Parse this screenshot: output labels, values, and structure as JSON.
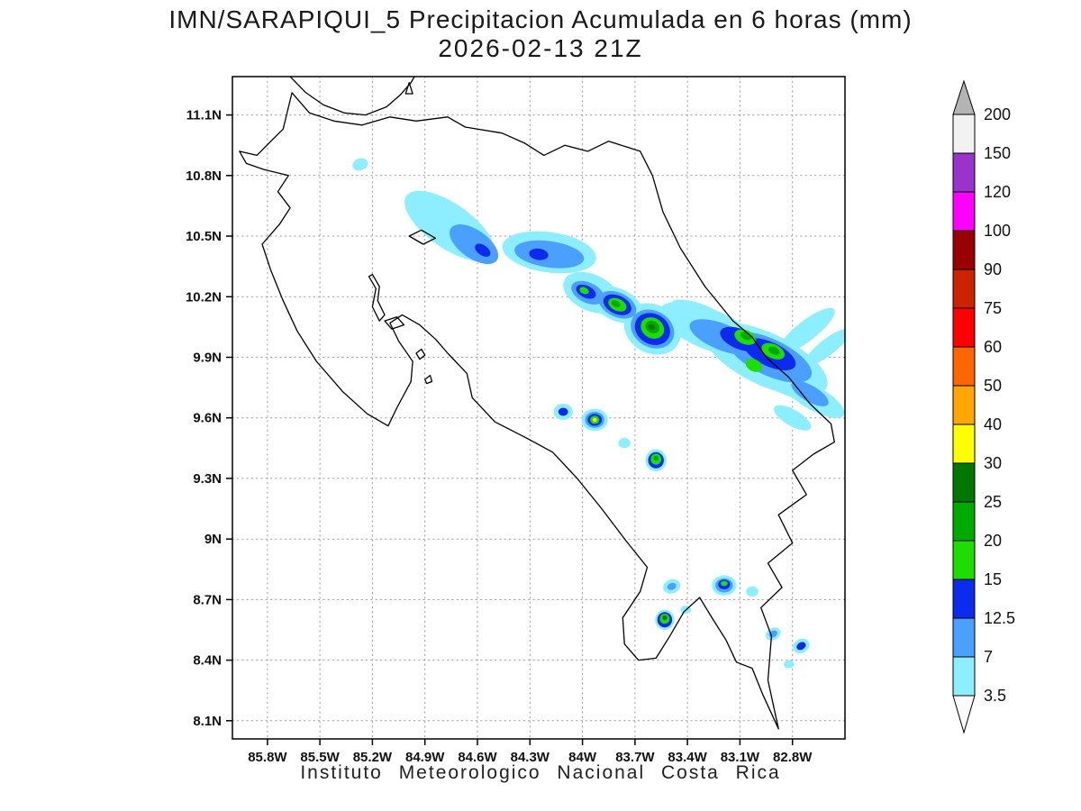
{
  "chart_data": {
    "type": "heatmap",
    "title": "IMN/SARAPIQUI_5 Precipitacion Acumulada en 6 horas (mm)",
    "subtitle": "2026-02-13 21Z",
    "footer": "Instituto Meteorologico Nacional Costa Rica",
    "units": "mm",
    "x_axis": {
      "tick_labels": [
        "85.8W",
        "85.5W",
        "85.2W",
        "84.9W",
        "84.6W",
        "84.3W",
        "84W",
        "83.7W",
        "83.4W",
        "83.1W",
        "82.8W"
      ],
      "tick_values": [
        85.8,
        85.5,
        85.2,
        84.9,
        84.6,
        84.3,
        84.0,
        83.7,
        83.4,
        83.1,
        82.8
      ],
      "lon_w_range": [
        86.0,
        82.5
      ]
    },
    "y_axis": {
      "tick_labels": [
        "11.1N",
        "10.8N",
        "10.5N",
        "10.2N",
        "9.9N",
        "9.6N",
        "9.3N",
        "9N",
        "8.7N",
        "8.4N",
        "8.1N"
      ],
      "tick_values": [
        11.1,
        10.8,
        10.5,
        10.2,
        9.9,
        9.6,
        9.3,
        9.0,
        8.7,
        8.4,
        8.1
      ],
      "lat_n_range": [
        11.29,
        8.01
      ]
    },
    "colorbar": {
      "boundary_labels": [
        "200",
        "150",
        "120",
        "100",
        "90",
        "75",
        "60",
        "50",
        "40",
        "30",
        "25",
        "20",
        "15",
        "12.5",
        "7",
        "3.5"
      ],
      "box_colors_top_to_bottom": [
        "#f2f2f2",
        "#9933cc",
        "#ff00ff",
        "#990000",
        "#cc2200",
        "#ff0000",
        "#ff6600",
        "#ffa600",
        "#ffff00",
        "#007700",
        "#00aa00",
        "#20dd00",
        "#0c2bee",
        "#4a9fff",
        "#8deeff"
      ],
      "arrow_top_color": "#b4b4b4",
      "arrow_bottom_color": "#fbfbfb"
    },
    "palette_mm": {
      "3.5": "#8deeff",
      "7": "#4a9fff",
      "12.5": "#0c2bee",
      "15": "#20dd00",
      "20": "#00aa00",
      "25": "#007700",
      "30": "#ffff00"
    },
    "geo": {
      "outline": [
        [
          85.96,
          10.92
        ],
        [
          85.86,
          10.9
        ],
        [
          85.78,
          10.97
        ],
        [
          85.71,
          11.03
        ],
        [
          85.66,
          11.21
        ],
        [
          85.56,
          11.11
        ],
        [
          85.42,
          11.07
        ],
        [
          85.26,
          11.05
        ],
        [
          85.1,
          11.09
        ],
        [
          84.95,
          11.07
        ],
        [
          84.77,
          11.09
        ],
        [
          84.67,
          11.04
        ],
        [
          84.46,
          11.01
        ],
        [
          84.33,
          10.96
        ],
        [
          84.22,
          10.9
        ],
        [
          84.1,
          10.95
        ],
        [
          83.97,
          10.92
        ],
        [
          83.85,
          10.97
        ],
        [
          83.67,
          10.92
        ],
        [
          83.6,
          10.8
        ],
        [
          83.54,
          10.62
        ],
        [
          83.44,
          10.44
        ],
        [
          83.3,
          10.25
        ],
        [
          83.14,
          10.08
        ],
        [
          83.03,
          10.0
        ],
        [
          82.95,
          9.9
        ],
        [
          82.82,
          9.8
        ],
        [
          82.7,
          9.67
        ],
        [
          82.58,
          9.57
        ],
        [
          82.56,
          9.48
        ],
        [
          82.68,
          9.42
        ],
        [
          82.8,
          9.34
        ],
        [
          82.72,
          9.22
        ],
        [
          82.88,
          9.12
        ],
        [
          82.8,
          8.98
        ],
        [
          82.94,
          8.88
        ],
        [
          82.86,
          8.76
        ],
        [
          82.98,
          8.66
        ],
        [
          82.92,
          8.52
        ],
        [
          82.94,
          8.3
        ],
        [
          82.88,
          8.06
        ],
        [
          82.97,
          8.23
        ],
        [
          83.03,
          8.36
        ],
        [
          83.12,
          8.39
        ],
        [
          83.18,
          8.5
        ],
        [
          83.26,
          8.61
        ],
        [
          83.33,
          8.71
        ],
        [
          83.42,
          8.64
        ],
        [
          83.5,
          8.52
        ],
        [
          83.58,
          8.41
        ],
        [
          83.68,
          8.4
        ],
        [
          83.76,
          8.48
        ],
        [
          83.77,
          8.61
        ],
        [
          83.67,
          8.74
        ],
        [
          83.63,
          8.86
        ],
        [
          83.75,
          8.99
        ],
        [
          83.89,
          9.15
        ],
        [
          84.03,
          9.3
        ],
        [
          84.17,
          9.43
        ],
        [
          84.32,
          9.5
        ],
        [
          84.5,
          9.58
        ],
        [
          84.63,
          9.7
        ],
        [
          84.66,
          9.82
        ],
        [
          84.77,
          9.92
        ],
        [
          84.84,
          9.99
        ],
        [
          84.93,
          10.06
        ],
        [
          85.03,
          10.11
        ],
        [
          85.1,
          10.07
        ],
        [
          85.05,
          9.98
        ],
        [
          84.97,
          9.88
        ],
        [
          84.98,
          9.78
        ],
        [
          85.06,
          9.65
        ],
        [
          85.11,
          9.56
        ],
        [
          85.23,
          9.62
        ],
        [
          85.37,
          9.73
        ],
        [
          85.52,
          9.88
        ],
        [
          85.63,
          10.03
        ],
        [
          85.71,
          10.18
        ],
        [
          85.78,
          10.33
        ],
        [
          85.83,
          10.46
        ],
        [
          85.73,
          10.56
        ],
        [
          85.67,
          10.64
        ],
        [
          85.74,
          10.72
        ],
        [
          85.68,
          10.8
        ],
        [
          85.82,
          10.83
        ],
        [
          85.92,
          10.86
        ]
      ],
      "lake_nicaragua_shore": [
        [
          85.67,
          11.29
        ],
        [
          85.58,
          11.21
        ],
        [
          85.48,
          11.15
        ],
        [
          85.36,
          11.11
        ],
        [
          85.24,
          11.1
        ],
        [
          85.12,
          11.14
        ],
        [
          85.04,
          11.2
        ],
        [
          84.98,
          11.26
        ],
        [
          84.96,
          11.29
        ]
      ],
      "islands": [
        [
          [
            85.01,
            11.205
          ],
          [
            84.97,
            11.205
          ],
          [
            84.99,
            11.26
          ]
        ],
        [
          [
            85.13,
            10.08
          ],
          [
            85.06,
            10.1
          ],
          [
            85.02,
            10.06
          ],
          [
            85.09,
            10.04
          ]
        ],
        [
          [
            84.95,
            9.92
          ],
          [
            84.92,
            9.94
          ],
          [
            84.9,
            9.91
          ],
          [
            84.93,
            9.89
          ]
        ],
        [
          [
            84.9,
            9.79
          ],
          [
            84.87,
            9.81
          ],
          [
            84.86,
            9.78
          ],
          [
            84.89,
            9.77
          ]
        ]
      ],
      "lakes": [
        [
          [
            84.99,
            10.5
          ],
          [
            84.92,
            10.53
          ],
          [
            84.84,
            10.49
          ],
          [
            84.91,
            10.46
          ]
        ],
        [
          [
            85.2,
            10.31
          ],
          [
            85.16,
            10.25
          ],
          [
            85.17,
            10.18
          ],
          [
            85.13,
            10.11
          ],
          [
            85.16,
            10.08
          ],
          [
            85.2,
            10.15
          ],
          [
            85.18,
            10.24
          ],
          [
            85.22,
            10.3
          ]
        ]
      ]
    },
    "precip_cells": [
      {
        "lon": 85.27,
        "lat": 10.855,
        "rx": 0.045,
        "ry": 0.03,
        "rot": -20,
        "level": "3.5"
      },
      {
        "lon": 84.76,
        "lat": 10.55,
        "rx": 0.3,
        "ry": 0.11,
        "rot": 35,
        "level": "3.5"
      },
      {
        "lon": 84.62,
        "lat": 10.46,
        "rx": 0.16,
        "ry": 0.07,
        "rot": 35,
        "level": "7"
      },
      {
        "lon": 84.57,
        "lat": 10.43,
        "rx": 0.05,
        "ry": 0.025,
        "rot": 35,
        "level": "12.5"
      },
      {
        "lon": 84.19,
        "lat": 10.42,
        "rx": 0.27,
        "ry": 0.1,
        "rot": 8,
        "level": "3.5"
      },
      {
        "lon": 84.19,
        "lat": 10.41,
        "rx": 0.2,
        "ry": 0.065,
        "rot": 8,
        "level": "7"
      },
      {
        "lon": 84.25,
        "lat": 10.41,
        "rx": 0.055,
        "ry": 0.028,
        "rot": 8,
        "level": "12.5"
      },
      {
        "lon": 83.95,
        "lat": 10.22,
        "rx": 0.17,
        "ry": 0.09,
        "rot": 25,
        "level": "3.5"
      },
      {
        "lon": 83.97,
        "lat": 10.22,
        "rx": 0.1,
        "ry": 0.05,
        "rot": 25,
        "level": "7"
      },
      {
        "lon": 83.98,
        "lat": 10.225,
        "rx": 0.06,
        "ry": 0.03,
        "rot": 25,
        "level": "12.5"
      },
      {
        "lon": 83.99,
        "lat": 10.23,
        "rx": 0.028,
        "ry": 0.016,
        "rot": 25,
        "level": "15"
      },
      {
        "lon": 83.8,
        "lat": 10.16,
        "rx": 0.15,
        "ry": 0.08,
        "rot": 25,
        "level": "3.5"
      },
      {
        "lon": 83.8,
        "lat": 10.16,
        "rx": 0.115,
        "ry": 0.06,
        "rot": 25,
        "level": "7"
      },
      {
        "lon": 83.8,
        "lat": 10.16,
        "rx": 0.085,
        "ry": 0.045,
        "rot": 25,
        "level": "12.5"
      },
      {
        "lon": 83.8,
        "lat": 10.16,
        "rx": 0.055,
        "ry": 0.03,
        "rot": 25,
        "level": "15"
      },
      {
        "lon": 83.81,
        "lat": 10.165,
        "rx": 0.028,
        "ry": 0.015,
        "rot": 25,
        "level": "20"
      },
      {
        "lon": 83.6,
        "lat": 10.04,
        "rx": 0.17,
        "ry": 0.12,
        "rot": 30,
        "level": "3.5"
      },
      {
        "lon": 83.6,
        "lat": 10.04,
        "rx": 0.13,
        "ry": 0.09,
        "rot": 30,
        "level": "7"
      },
      {
        "lon": 83.6,
        "lat": 10.04,
        "rx": 0.105,
        "ry": 0.075,
        "rot": 30,
        "level": "12.5"
      },
      {
        "lon": 83.6,
        "lat": 10.045,
        "rx": 0.07,
        "ry": 0.05,
        "rot": 30,
        "level": "15"
      },
      {
        "lon": 83.6,
        "lat": 10.05,
        "rx": 0.042,
        "ry": 0.03,
        "rot": 30,
        "level": "20"
      },
      {
        "lon": 83.605,
        "lat": 10.05,
        "rx": 0.02,
        "ry": 0.014,
        "rot": 30,
        "level": "25"
      },
      {
        "lon": 83.28,
        "lat": 10.04,
        "rx": 0.3,
        "ry": 0.1,
        "rot": 22,
        "level": "3.5"
      },
      {
        "lon": 83.33,
        "lat": 10.12,
        "rx": 0.17,
        "ry": 0.045,
        "rot": 20,
        "level": "3.5"
      },
      {
        "lon": 82.95,
        "lat": 9.89,
        "rx": 0.38,
        "ry": 0.13,
        "rot": 25,
        "level": "3.5"
      },
      {
        "lon": 82.72,
        "lat": 10.03,
        "rx": 0.2,
        "ry": 0.05,
        "rot": -38,
        "level": "3.5"
      },
      {
        "lon": 82.6,
        "lat": 9.95,
        "rx": 0.16,
        "ry": 0.04,
        "rot": -38,
        "level": "3.5"
      },
      {
        "lon": 82.68,
        "lat": 9.7,
        "rx": 0.2,
        "ry": 0.06,
        "rot": 30,
        "level": "3.5"
      },
      {
        "lon": 82.85,
        "lat": 9.76,
        "rx": 0.16,
        "ry": 0.04,
        "rot": 25,
        "level": "3.5"
      },
      {
        "lon": 82.8,
        "lat": 9.6,
        "rx": 0.12,
        "ry": 0.04,
        "rot": 30,
        "level": "3.5"
      },
      {
        "lon": 83.2,
        "lat": 10.0,
        "rx": 0.2,
        "ry": 0.065,
        "rot": 22,
        "level": "7"
      },
      {
        "lon": 82.93,
        "lat": 9.9,
        "rx": 0.26,
        "ry": 0.09,
        "rot": 25,
        "level": "7"
      },
      {
        "lon": 82.7,
        "lat": 9.72,
        "rx": 0.12,
        "ry": 0.04,
        "rot": 30,
        "level": "7"
      },
      {
        "lon": 83.1,
        "lat": 9.99,
        "rx": 0.12,
        "ry": 0.05,
        "rot": 22,
        "level": "12.5"
      },
      {
        "lon": 82.93,
        "lat": 9.915,
        "rx": 0.16,
        "ry": 0.06,
        "rot": 25,
        "level": "12.5"
      },
      {
        "lon": 83.07,
        "lat": 10.0,
        "rx": 0.065,
        "ry": 0.035,
        "rot": 22,
        "level": "15"
      },
      {
        "lon": 82.91,
        "lat": 9.93,
        "rx": 0.07,
        "ry": 0.035,
        "rot": 25,
        "level": "15"
      },
      {
        "lon": 83.02,
        "lat": 9.86,
        "rx": 0.05,
        "ry": 0.03,
        "rot": 25,
        "level": "15"
      },
      {
        "lon": 83.065,
        "lat": 10.005,
        "rx": 0.034,
        "ry": 0.018,
        "rot": 22,
        "level": "20"
      },
      {
        "lon": 82.905,
        "lat": 9.932,
        "rx": 0.035,
        "ry": 0.018,
        "rot": 25,
        "level": "20"
      },
      {
        "lon": 84.11,
        "lat": 9.63,
        "rx": 0.055,
        "ry": 0.04,
        "rot": 0,
        "level": "3.5"
      },
      {
        "lon": 84.11,
        "lat": 9.63,
        "rx": 0.028,
        "ry": 0.02,
        "rot": 0,
        "level": "12.5"
      },
      {
        "lon": 83.93,
        "lat": 9.59,
        "rx": 0.075,
        "ry": 0.055,
        "rot": 0,
        "level": "3.5"
      },
      {
        "lon": 83.93,
        "lat": 9.59,
        "rx": 0.055,
        "ry": 0.04,
        "rot": 0,
        "level": "7"
      },
      {
        "lon": 83.93,
        "lat": 9.59,
        "rx": 0.04,
        "ry": 0.03,
        "rot": 0,
        "level": "12.5"
      },
      {
        "lon": 83.93,
        "lat": 9.59,
        "rx": 0.026,
        "ry": 0.02,
        "rot": 0,
        "level": "15"
      },
      {
        "lon": 83.93,
        "lat": 9.59,
        "rx": 0.012,
        "ry": 0.01,
        "rot": 0,
        "level": "30"
      },
      {
        "lon": 83.76,
        "lat": 9.475,
        "rx": 0.035,
        "ry": 0.025,
        "rot": 0,
        "level": "3.5"
      },
      {
        "lon": 83.58,
        "lat": 9.39,
        "rx": 0.06,
        "ry": 0.055,
        "rot": 0,
        "level": "3.5"
      },
      {
        "lon": 83.58,
        "lat": 9.39,
        "rx": 0.045,
        "ry": 0.04,
        "rot": 0,
        "level": "12.5"
      },
      {
        "lon": 83.58,
        "lat": 9.395,
        "rx": 0.03,
        "ry": 0.027,
        "rot": 0,
        "level": "15"
      },
      {
        "lon": 83.58,
        "lat": 9.4,
        "rx": 0.015,
        "ry": 0.012,
        "rot": 0,
        "level": "20"
      },
      {
        "lon": 83.49,
        "lat": 8.765,
        "rx": 0.05,
        "ry": 0.035,
        "rot": -20,
        "level": "3.5"
      },
      {
        "lon": 83.49,
        "lat": 8.765,
        "rx": 0.026,
        "ry": 0.017,
        "rot": -20,
        "level": "7"
      },
      {
        "lon": 83.19,
        "lat": 8.77,
        "rx": 0.07,
        "ry": 0.05,
        "rot": 0,
        "level": "3.5"
      },
      {
        "lon": 83.19,
        "lat": 8.77,
        "rx": 0.05,
        "ry": 0.035,
        "rot": 0,
        "level": "7"
      },
      {
        "lon": 83.19,
        "lat": 8.775,
        "rx": 0.034,
        "ry": 0.024,
        "rot": 0,
        "level": "12.5"
      },
      {
        "lon": 83.19,
        "lat": 8.78,
        "rx": 0.02,
        "ry": 0.013,
        "rot": 0,
        "level": "15"
      },
      {
        "lon": 83.53,
        "lat": 8.6,
        "rx": 0.055,
        "ry": 0.05,
        "rot": 0,
        "level": "3.5"
      },
      {
        "lon": 83.53,
        "lat": 8.6,
        "rx": 0.042,
        "ry": 0.038,
        "rot": 0,
        "level": "12.5"
      },
      {
        "lon": 83.53,
        "lat": 8.605,
        "rx": 0.028,
        "ry": 0.025,
        "rot": 0,
        "level": "15"
      },
      {
        "lon": 83.53,
        "lat": 8.61,
        "rx": 0.014,
        "ry": 0.012,
        "rot": 0,
        "level": "25"
      },
      {
        "lon": 83.41,
        "lat": 8.65,
        "rx": 0.03,
        "ry": 0.02,
        "rot": 0,
        "level": "3.5"
      },
      {
        "lon": 83.03,
        "lat": 8.74,
        "rx": 0.035,
        "ry": 0.025,
        "rot": 0,
        "level": "3.5"
      },
      {
        "lon": 82.91,
        "lat": 8.53,
        "rx": 0.045,
        "ry": 0.03,
        "rot": -30,
        "level": "3.5"
      },
      {
        "lon": 82.91,
        "lat": 8.53,
        "rx": 0.025,
        "ry": 0.016,
        "rot": -30,
        "level": "7"
      },
      {
        "lon": 82.75,
        "lat": 8.47,
        "rx": 0.05,
        "ry": 0.035,
        "rot": -30,
        "level": "3.5"
      },
      {
        "lon": 82.75,
        "lat": 8.47,
        "rx": 0.028,
        "ry": 0.018,
        "rot": -30,
        "level": "12.5"
      },
      {
        "lon": 82.82,
        "lat": 8.38,
        "rx": 0.03,
        "ry": 0.02,
        "rot": 0,
        "level": "3.5"
      }
    ]
  }
}
